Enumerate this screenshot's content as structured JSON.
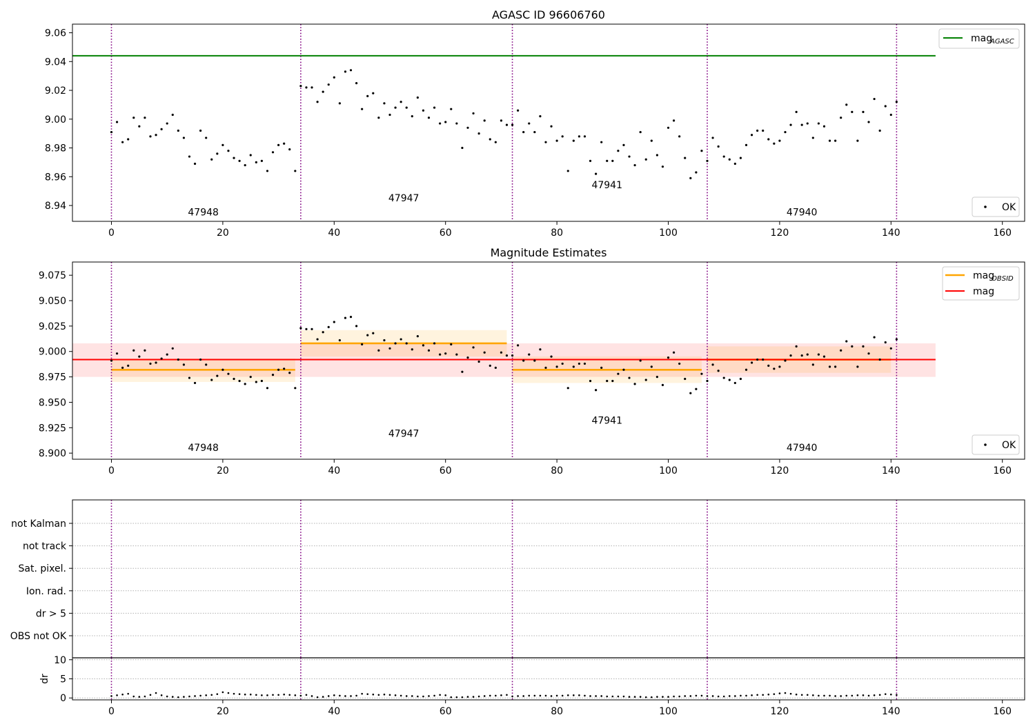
{
  "figure": {
    "panel1_title": "AGASC ID 96606760",
    "panel2_title": "Magnitude Estimates",
    "x_ticks": [
      0,
      20,
      40,
      60,
      80,
      100,
      120,
      140,
      160
    ],
    "obsid_boundaries": [
      0,
      34,
      72,
      107,
      141
    ],
    "colors": {
      "agasc_line": "#008000",
      "obsid_line": "#ffa500",
      "mag_line": "#ff0000",
      "boundary": "#800080",
      "points": "#000000"
    }
  },
  "chart_data": [
    {
      "type": "scatter",
      "title": "AGASC ID 96606760",
      "xlim": [
        -7,
        164
      ],
      "ylim": [
        8.929,
        9.066
      ],
      "y_ticks": [
        8.94,
        8.96,
        8.98,
        9.0,
        9.02,
        9.04,
        9.06
      ],
      "y_tick_labels": [
        "8.94",
        "8.96",
        "8.98",
        "9.00",
        "9.02",
        "9.04",
        "9.06"
      ],
      "legend": {
        "placement": "top-right and bottom-right",
        "entries": [
          {
            "name": "mag",
            "sub": "AGASC"
          },
          {
            "name": "OK"
          }
        ]
      },
      "hlines": [
        {
          "name": "mag AGASC",
          "y": 9.044,
          "x_range": [
            -7,
            148
          ]
        }
      ],
      "obsid_labels": [
        {
          "label": "47948",
          "x": 16.5,
          "y": 8.933
        },
        {
          "label": "47947",
          "x": 52.5,
          "y": 8.943
        },
        {
          "label": "47941",
          "x": 89,
          "y": 8.952
        },
        {
          "label": "47940",
          "x": 124,
          "y": 8.933
        }
      ],
      "series": [
        {
          "name": "OK",
          "x": [
            0,
            1,
            2,
            3,
            4,
            5,
            6,
            7,
            8,
            9,
            10,
            11,
            12,
            13,
            14,
            15,
            16,
            17,
            18,
            19,
            20,
            21,
            22,
            23,
            24,
            25,
            26,
            27,
            28,
            29,
            30,
            31,
            32,
            33,
            34,
            35,
            36,
            37,
            38,
            39,
            40,
            41,
            42,
            43,
            44,
            45,
            46,
            47,
            48,
            49,
            50,
            51,
            52,
            53,
            54,
            55,
            56,
            57,
            58,
            59,
            60,
            61,
            62,
            63,
            64,
            65,
            66,
            67,
            68,
            69,
            70,
            71,
            72,
            73,
            74,
            75,
            76,
            77,
            78,
            79,
            80,
            81,
            82,
            83,
            84,
            85,
            86,
            87,
            88,
            89,
            90,
            91,
            92,
            93,
            94,
            95,
            96,
            97,
            98,
            99,
            100,
            101,
            102,
            103,
            104,
            105,
            106,
            107,
            108,
            109,
            110,
            111,
            112,
            113,
            114,
            115,
            116,
            117,
            118,
            119,
            120,
            121,
            122,
            123,
            124,
            125,
            126,
            127,
            128,
            129,
            130,
            131,
            132,
            133,
            134,
            135,
            136,
            137,
            138,
            139,
            140,
            141
          ],
          "y": [
            8.991,
            8.998,
            8.984,
            8.986,
            9.001,
            8.995,
            9.001,
            8.988,
            8.989,
            8.993,
            8.997,
            9.003,
            8.992,
            8.987,
            8.974,
            8.969,
            8.992,
            8.987,
            8.972,
            8.976,
            8.982,
            8.978,
            8.973,
            8.971,
            8.968,
            8.975,
            8.97,
            8.971,
            8.964,
            8.977,
            8.982,
            8.983,
            8.979,
            8.964,
            9.023,
            9.022,
            9.022,
            9.012,
            9.019,
            9.024,
            9.029,
            9.011,
            9.033,
            9.034,
            9.025,
            9.007,
            9.016,
            9.018,
            9.001,
            9.011,
            9.003,
            9.008,
            9.012,
            9.008,
            9.002,
            9.015,
            9.006,
            9.001,
            9.008,
            8.997,
            8.998,
            9.007,
            8.997,
            8.98,
            8.994,
            9.004,
            8.99,
            8.999,
            8.986,
            8.984,
            8.999,
            8.996,
            8.996,
            9.006,
            8.991,
            8.997,
            8.991,
            9.002,
            8.984,
            8.995,
            8.985,
            8.988,
            8.964,
            8.985,
            8.988,
            8.988,
            8.971,
            8.962,
            8.984,
            8.971,
            8.971,
            8.978,
            8.982,
            8.974,
            8.968,
            8.991,
            8.972,
            8.985,
            8.975,
            8.967,
            8.994,
            8.999,
            8.988,
            8.973,
            8.959,
            8.963,
            8.978,
            8.971,
            8.987,
            8.981,
            8.974,
            8.972,
            8.969,
            8.973,
            8.982,
            8.989,
            8.992,
            8.992,
            8.986,
            8.983,
            8.985,
            8.991,
            8.996,
            9.005,
            8.996,
            8.997,
            8.987,
            8.997,
            8.995,
            8.985,
            8.985,
            9.001,
            9.01,
            9.005,
            8.985,
            9.005,
            8.998,
            9.014,
            8.992,
            9.009,
            9.003,
            9.012
          ]
        }
      ]
    },
    {
      "type": "scatter",
      "title": "Magnitude Estimates",
      "xlim": [
        -7,
        164
      ],
      "ylim": [
        8.894,
        9.088
      ],
      "y_ticks": [
        8.9,
        8.925,
        8.95,
        8.975,
        9.0,
        9.025,
        9.05,
        9.075
      ],
      "y_tick_labels": [
        "8.900",
        "8.925",
        "8.950",
        "8.975",
        "9.000",
        "9.025",
        "9.050",
        "9.075"
      ],
      "legend": {
        "placement": "top-right and bottom-right",
        "entries": [
          {
            "name": "mag",
            "sub": "OBSID"
          },
          {
            "name": "mag"
          },
          {
            "name": "OK"
          }
        ]
      },
      "mag_line": {
        "y": 8.992,
        "band": [
          8.975,
          9.008
        ],
        "x_range": [
          -7,
          148
        ]
      },
      "obsid_means": [
        {
          "x_range": [
            0,
            33
          ],
          "y": 8.982,
          "band": [
            8.97,
            8.993
          ]
        },
        {
          "x_range": [
            34,
            71
          ],
          "y": 9.008,
          "band": [
            8.995,
            9.021
          ]
        },
        {
          "x_range": [
            72,
            106
          ],
          "y": 8.982,
          "band": [
            8.969,
            8.995
          ]
        },
        {
          "x_range": [
            107,
            140
          ],
          "y": 8.992,
          "band": [
            8.979,
            9.005
          ]
        }
      ],
      "obsid_labels": [
        {
          "label": "47948",
          "x": 16.5,
          "y": 8.902
        },
        {
          "label": "47947",
          "x": 52.5,
          "y": 8.916
        },
        {
          "label": "47941",
          "x": 89,
          "y": 8.929
        },
        {
          "label": "47940",
          "x": 124,
          "y": 8.902
        }
      ],
      "series": [
        {
          "name": "OK",
          "same_as": "panel 1 points"
        }
      ]
    },
    {
      "type": "scatter",
      "title": "",
      "xlim": [
        -7,
        164
      ],
      "flag_categories": [
        "not Kalman",
        "not track",
        "Sat. pixel.",
        "Ion. rad.",
        "dr > 5",
        "OBS not OK"
      ],
      "dr_axis": {
        "ylabel": "dr",
        "ylim": [
          -0.5,
          10.5
        ],
        "y_ticks": [
          0,
          5,
          10
        ],
        "y_tick_labels": [
          "0",
          "5",
          "10"
        ]
      },
      "series": [
        {
          "name": "dr",
          "y": [
            0.5,
            0.7,
            0.9,
            1.1,
            0.4,
            0.3,
            0.4,
            0.8,
            1.3,
            0.7,
            0.4,
            0.3,
            0.2,
            0.3,
            0.4,
            0.5,
            0.6,
            0.7,
            0.8,
            1.0,
            1.5,
            1.3,
            1.1,
            1.0,
            0.9,
            0.9,
            0.8,
            0.7,
            0.7,
            0.8,
            0.8,
            0.9,
            0.8,
            0.7,
            0.6,
            0.8,
            0.5,
            0.2,
            0.3,
            0.5,
            0.7,
            0.6,
            0.5,
            0.5,
            0.6,
            1.1,
            1.0,
            0.9,
            0.8,
            0.9,
            0.8,
            0.7,
            0.6,
            0.5,
            0.5,
            0.4,
            0.4,
            0.5,
            0.6,
            0.8,
            0.7,
            0.2,
            0.2,
            0.2,
            0.3,
            0.3,
            0.4,
            0.5,
            0.6,
            0.6,
            0.7,
            0.8,
            0.4,
            0.5,
            0.5,
            0.6,
            0.6,
            0.6,
            0.6,
            0.5,
            0.6,
            0.6,
            0.7,
            0.7,
            0.7,
            0.6,
            0.5,
            0.5,
            0.5,
            0.4,
            0.4,
            0.4,
            0.4,
            0.3,
            0.3,
            0.3,
            0.2,
            0.2,
            0.3,
            0.3,
            0.3,
            0.4,
            0.4,
            0.5,
            0.5,
            0.6,
            0.6,
            0.5,
            0.5,
            0.4,
            0.4,
            0.5,
            0.5,
            0.6,
            0.6,
            0.7,
            0.8,
            0.8,
            0.9,
            1.0,
            1.2,
            1.3,
            1.1,
            0.9,
            0.8,
            0.8,
            0.7,
            0.6,
            0.6,
            0.6,
            0.5,
            0.5,
            0.6,
            0.6,
            0.7,
            0.7,
            0.6,
            0.7,
            0.8,
            1.0,
            0.9,
            0.8
          ]
        }
      ]
    }
  ]
}
